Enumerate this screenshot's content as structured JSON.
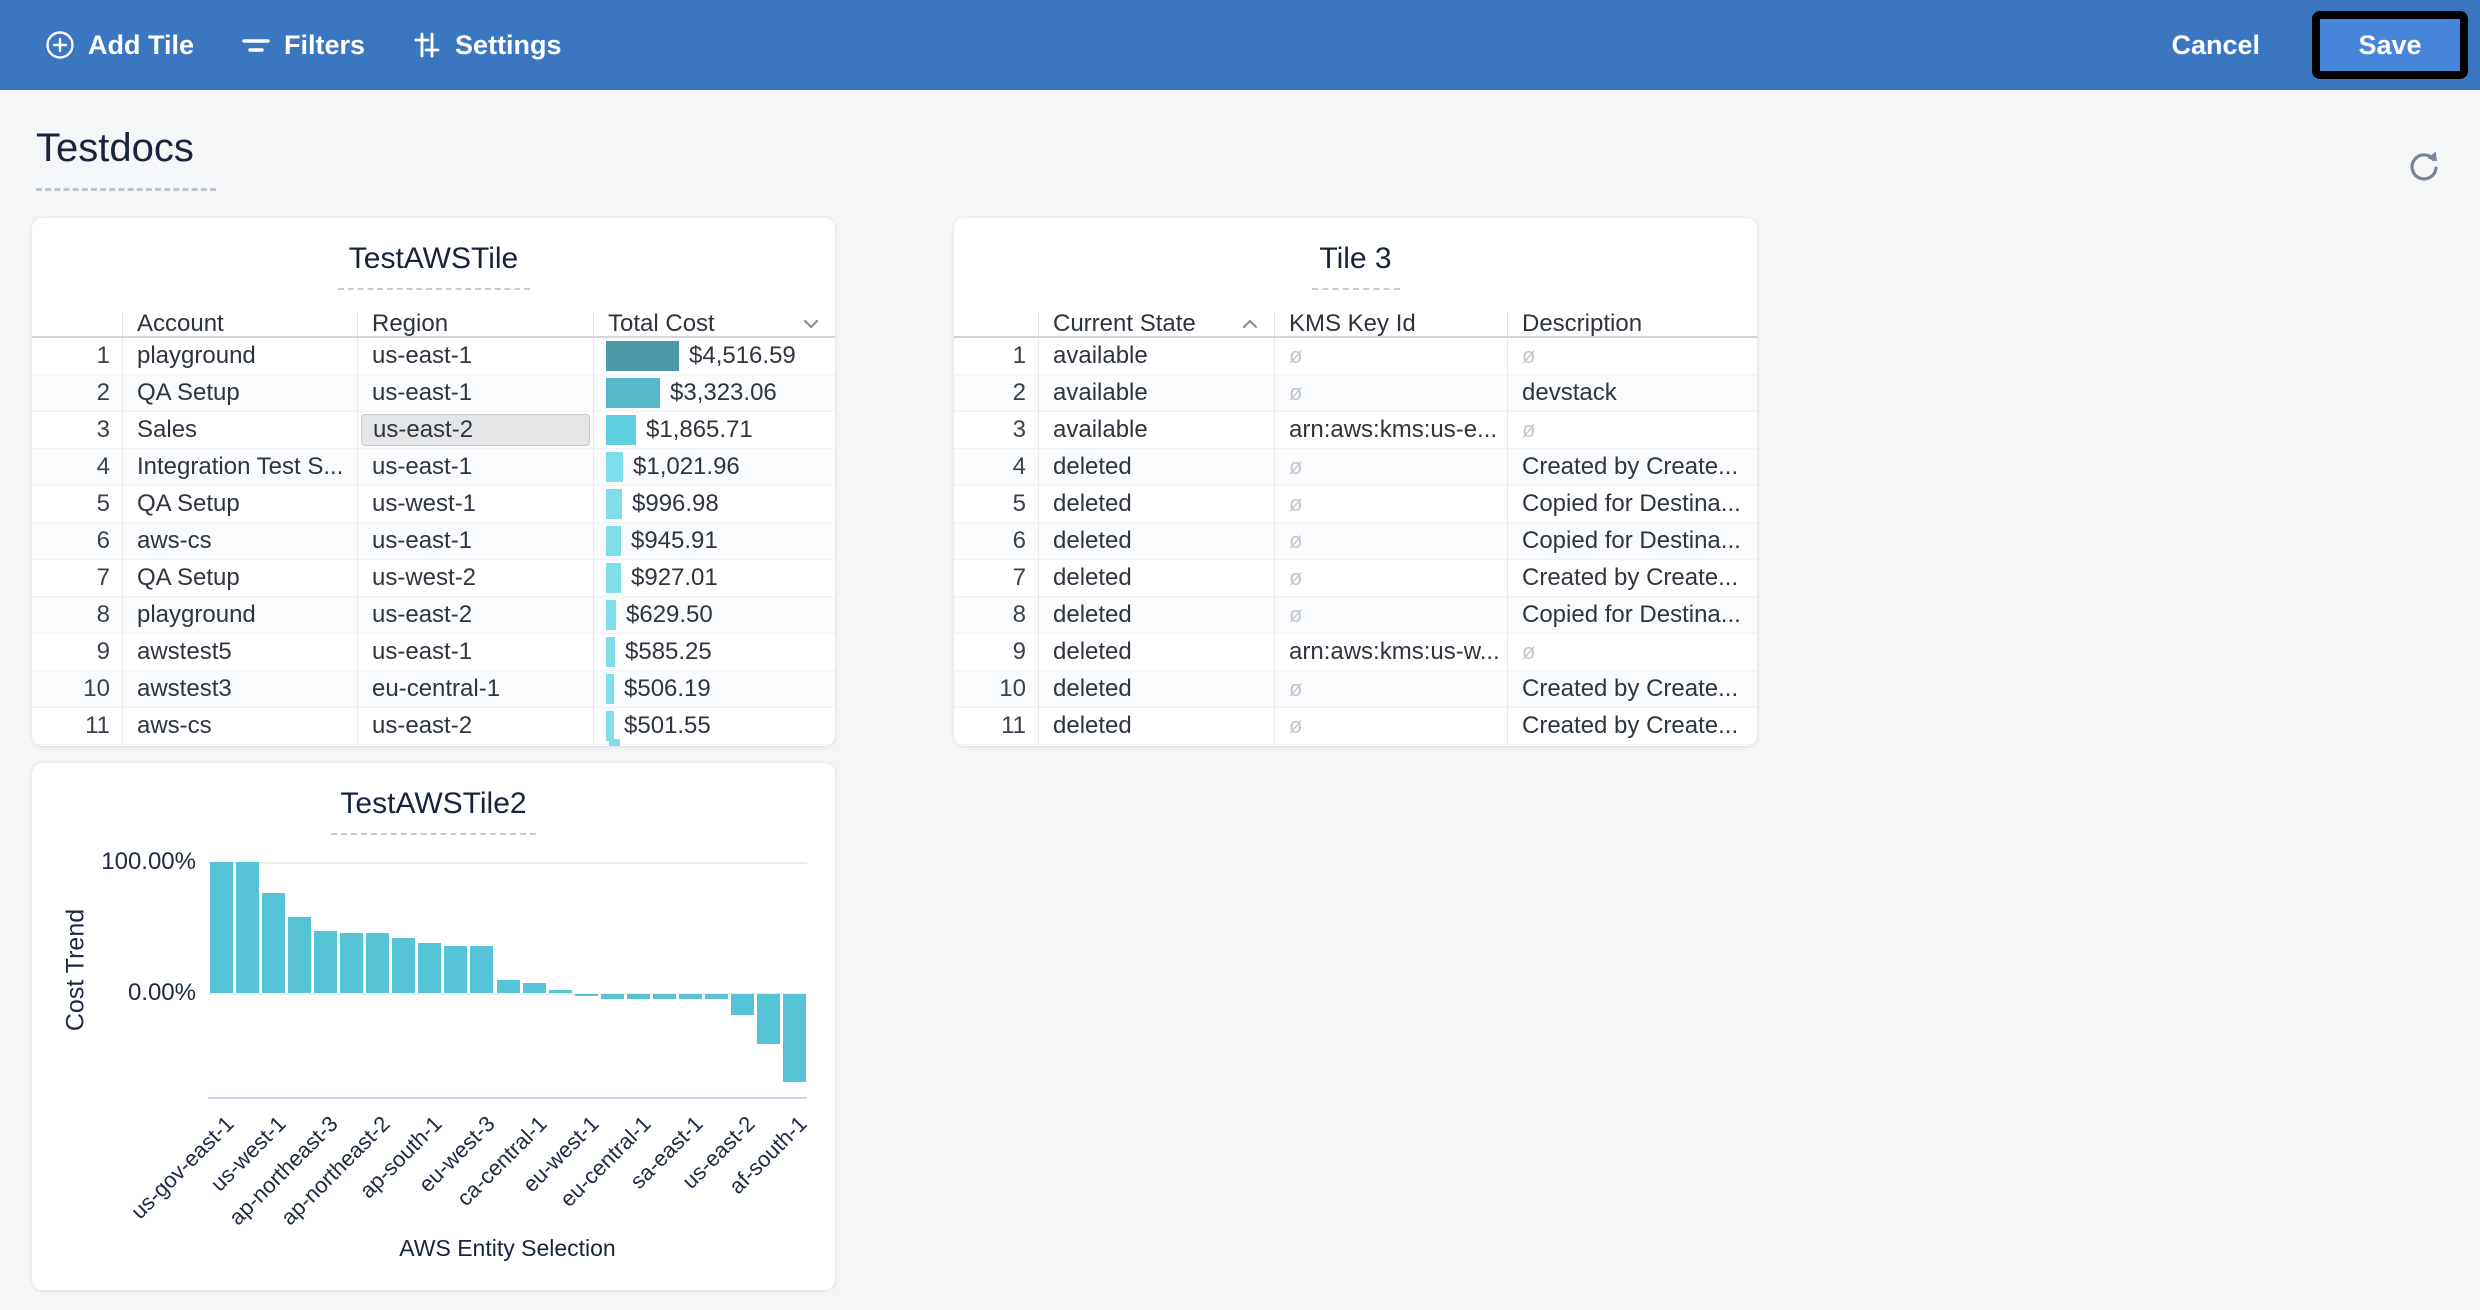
{
  "topbar": {
    "add_tile": "Add Tile",
    "filters": "Filters",
    "settings": "Settings",
    "cancel": "Cancel",
    "save": "Save",
    "bar_color": "#3b76c1",
    "save_button_color": "#4685d8"
  },
  "page": {
    "title": "Testdocs"
  },
  "tiles": {
    "table1": {
      "title": "TestAWSTile",
      "columns": [
        "Account",
        "Region",
        "Total Cost"
      ],
      "sort": {
        "column": "Total Cost",
        "direction": "desc"
      },
      "max_cost": 4516.59,
      "rows": [
        {
          "num": "1",
          "account": "playground",
          "region": "us-east-1",
          "cost": "$4,516.59",
          "cost_value": 4516.59,
          "bar_color": "#4b99a7"
        },
        {
          "num": "2",
          "account": "QA Setup",
          "region": "us-east-1",
          "cost": "$3,323.06",
          "cost_value": 3323.06,
          "bar_color": "#55b7c7"
        },
        {
          "num": "3",
          "account": "Sales",
          "region": "us-east-2",
          "cost": "$1,865.71",
          "cost_value": 1865.71,
          "bar_color": "#60cfe0",
          "region_highlighted": true
        },
        {
          "num": "4",
          "account": "Integration Test S...",
          "region": "us-east-1",
          "cost": "$1,021.96",
          "cost_value": 1021.96,
          "bar_color": "#7edee9"
        },
        {
          "num": "5",
          "account": "QA Setup",
          "region": "us-west-1",
          "cost": "$996.98",
          "cost_value": 996.98,
          "bar_color": "#7edee9"
        },
        {
          "num": "6",
          "account": "aws-cs",
          "region": "us-east-1",
          "cost": "$945.91",
          "cost_value": 945.91,
          "bar_color": "#7edee9"
        },
        {
          "num": "7",
          "account": "QA Setup",
          "region": "us-west-2",
          "cost": "$927.01",
          "cost_value": 927.01,
          "bar_color": "#7edee9"
        },
        {
          "num": "8",
          "account": "playground",
          "region": "us-east-2",
          "cost": "$629.50",
          "cost_value": 629.5,
          "bar_color": "#7edee9"
        },
        {
          "num": "9",
          "account": "awstest5",
          "region": "us-east-1",
          "cost": "$585.25",
          "cost_value": 585.25,
          "bar_color": "#7edee9"
        },
        {
          "num": "10",
          "account": "awstest3",
          "region": "eu-central-1",
          "cost": "$506.19",
          "cost_value": 506.19,
          "bar_color": "#7edee9"
        },
        {
          "num": "11",
          "account": "aws-cs",
          "region": "us-east-2",
          "cost": "$501.55",
          "cost_value": 501.55,
          "bar_color": "#7edee9"
        }
      ]
    },
    "table2": {
      "title": "Tile 3",
      "columns": [
        "Current State",
        "KMS Key Id",
        "Description"
      ],
      "sort": {
        "column": "Current State",
        "direction": "asc"
      },
      "null_symbol": "ø",
      "rows": [
        {
          "num": "1",
          "state": "available",
          "kms": "ø",
          "desc": "ø"
        },
        {
          "num": "2",
          "state": "available",
          "kms": "ø",
          "desc": "devstack"
        },
        {
          "num": "3",
          "state": "available",
          "kms": "arn:aws:kms:us-e...",
          "desc": "ø"
        },
        {
          "num": "4",
          "state": "deleted",
          "kms": "ø",
          "desc": "Created by Create..."
        },
        {
          "num": "5",
          "state": "deleted",
          "kms": "ø",
          "desc": "Copied for Destina..."
        },
        {
          "num": "6",
          "state": "deleted",
          "kms": "ø",
          "desc": "Copied for Destina..."
        },
        {
          "num": "7",
          "state": "deleted",
          "kms": "ø",
          "desc": "Created by Create..."
        },
        {
          "num": "8",
          "state": "deleted",
          "kms": "ø",
          "desc": "Copied for Destina..."
        },
        {
          "num": "9",
          "state": "deleted",
          "kms": "arn:aws:kms:us-w...",
          "desc": "ø"
        },
        {
          "num": "10",
          "state": "deleted",
          "kms": "ø",
          "desc": "Created by Create..."
        },
        {
          "num": "11",
          "state": "deleted",
          "kms": "ø",
          "desc": "Created by Create..."
        }
      ]
    }
  },
  "chart_data": {
    "type": "bar",
    "title": "TestAWSTile2",
    "xlabel": "AWS Entity Selection",
    "ylabel": "Cost Trend",
    "yticks": [
      "100.00%",
      "0.00%"
    ],
    "ytick_values": [
      100,
      0
    ],
    "ylim": [
      -80,
      100
    ],
    "grid": "horizontal",
    "legend": "none",
    "bar_color": "#56c4d6",
    "label_every": 2,
    "categories": [
      "us-gov-east-1",
      "us-west-1",
      "ap-northeast-3",
      "ap-northeast-2",
      "ap-south-1",
      "eu-west-3",
      "ca-central-1",
      "eu-west-1",
      "eu-central-1",
      "sa-east-1",
      "us-east-2",
      "af-south-1"
    ],
    "values": [
      100,
      100,
      76,
      58,
      47,
      46,
      46,
      42,
      38,
      36,
      36,
      10,
      8,
      2,
      -1,
      -4,
      -4,
      -4,
      -4,
      -4,
      -16,
      -38,
      -67
    ]
  }
}
